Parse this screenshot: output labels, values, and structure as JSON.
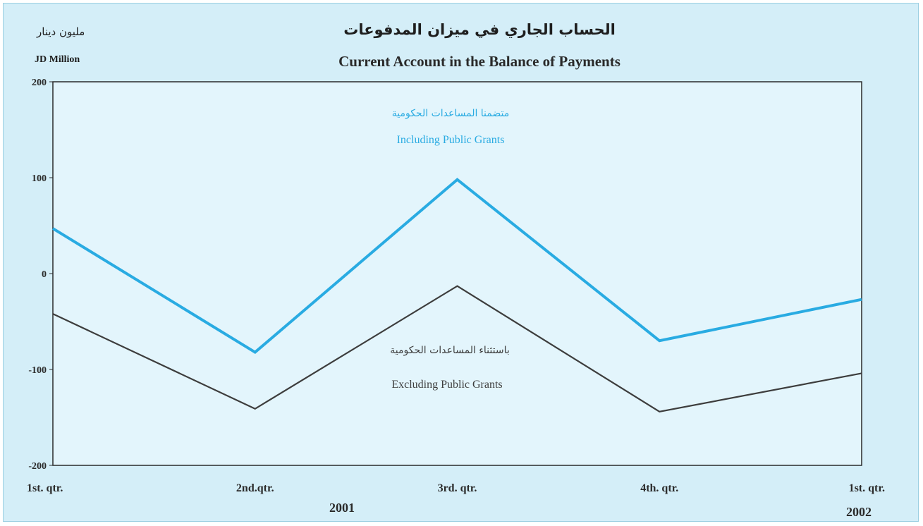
{
  "header": {
    "title_ar": "الحساب الجاري في ميزان المدفوعات",
    "title_en": "Current Account in the Balance of Payments",
    "unit_ar": "مليون دينار",
    "unit_en": "JD Million"
  },
  "years": [
    "2001",
    "2002"
  ],
  "chart_data": {
    "type": "line",
    "title": "Current Account in the Balance of Payments",
    "ylabel": "JD Million",
    "xlabel": "",
    "categories": [
      "1st. qtr.",
      "2nd.qtr.",
      "3rd. qtr.",
      "4th. qtr.",
      "1st. qtr."
    ],
    "ylim": [
      -200,
      200
    ],
    "yticks": [
      "200",
      "100",
      "0",
      "-100",
      "-200"
    ],
    "grid": false,
    "series": [
      {
        "name": "Including Public Grants",
        "name_ar": "متضمنا المساعدات الحكومية",
        "values": [
          47,
          -82,
          98,
          -70,
          -27
        ],
        "color": "#29abe2"
      },
      {
        "name": "Excluding Public Grants",
        "name_ar": "باستثناء المساعدات الحكومية",
        "values": [
          -42,
          -141,
          -13,
          -144,
          -104
        ],
        "color": "#3d3d3d"
      }
    ]
  }
}
